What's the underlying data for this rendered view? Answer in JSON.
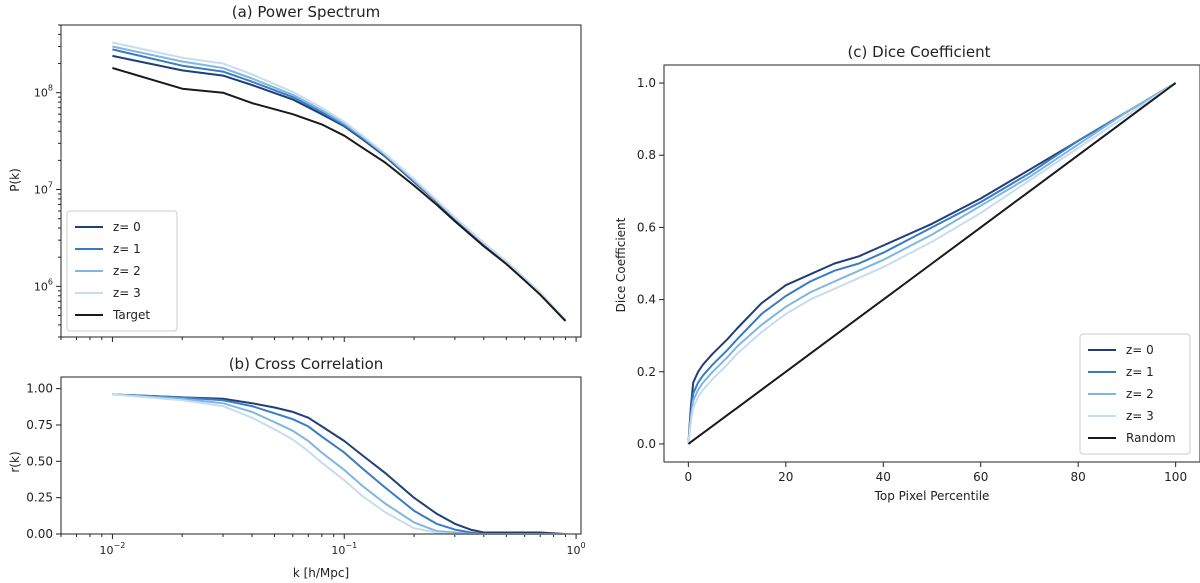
{
  "chart_data": [
    {
      "id": "a",
      "type": "line",
      "title": "(a) Power Spectrum",
      "xlabel": "",
      "ylabel": "P(k)",
      "xscale": "log",
      "yscale": "log",
      "xlim": [
        0.006,
        1.05
      ],
      "ylim": [
        300000,
        500000000
      ],
      "yticks": [
        {
          "value": 1000000,
          "base": "10",
          "exp": "6"
        },
        {
          "value": 10000000,
          "base": "10",
          "exp": "7"
        },
        {
          "value": 100000000,
          "base": "10",
          "exp": "8"
        }
      ],
      "legend_position": "lower-left",
      "x": [
        0.01,
        0.02,
        0.03,
        0.04,
        0.06,
        0.08,
        0.1,
        0.12,
        0.15,
        0.2,
        0.25,
        0.3,
        0.4,
        0.5,
        0.6,
        0.7,
        0.8,
        0.9
      ],
      "series": [
        {
          "name": "z= 0",
          "color": "#1f3f7a",
          "values": [
            240000000,
            170000000,
            150000000,
            120000000,
            85000000,
            60000000,
            45000000,
            33000000,
            22000000,
            12000000,
            7500000,
            5000000,
            2800000,
            1800000,
            1200000,
            850000,
            600000,
            450000
          ]
        },
        {
          "name": "z= 1",
          "color": "#3a7cc2",
          "values": [
            280000000,
            190000000,
            165000000,
            130000000,
            90000000,
            63000000,
            46000000,
            34000000,
            22500000,
            12200000,
            7600000,
            5000000,
            2750000,
            1750000,
            1180000,
            840000,
            590000,
            440000
          ]
        },
        {
          "name": "z= 2",
          "color": "#7fb6dd",
          "values": [
            300000000,
            210000000,
            180000000,
            140000000,
            95000000,
            66000000,
            48000000,
            35000000,
            23000000,
            12500000,
            7700000,
            5100000,
            2800000,
            1800000,
            1200000,
            860000,
            600000,
            450000
          ]
        },
        {
          "name": "z= 3",
          "color": "#c9dcef",
          "values": [
            330000000,
            230000000,
            200000000,
            155000000,
            102000000,
            70000000,
            50000000,
            36000000,
            23500000,
            12800000,
            7800000,
            5150000,
            2820000,
            1820000,
            1220000,
            870000,
            610000,
            455000
          ]
        },
        {
          "name": "Target",
          "color": "#1a1a1a",
          "values": [
            180000000,
            110000000,
            100000000,
            78000000,
            60000000,
            47000000,
            36000000,
            27000000,
            19000000,
            11000000,
            7000000,
            4700000,
            2600000,
            1700000,
            1150000,
            820000,
            590000,
            440000
          ]
        }
      ]
    },
    {
      "id": "b",
      "type": "line",
      "title": "(b) Cross Correlation",
      "xlabel": "k [h/Mpc]",
      "ylabel": "r(k)",
      "xscale": "log",
      "yscale": "linear",
      "xlim": [
        0.006,
        1.05
      ],
      "ylim": [
        0,
        1.08
      ],
      "xticks": [
        {
          "value": 0.01,
          "base": "10",
          "exp": "−2"
        },
        {
          "value": 0.1,
          "base": "10",
          "exp": "−1"
        },
        {
          "value": 1,
          "base": "10",
          "exp": "0"
        }
      ],
      "yticks": [
        "0.00",
        "0.25",
        "0.50",
        "0.75",
        "1.00"
      ],
      "x": [
        0.01,
        0.02,
        0.03,
        0.04,
        0.05,
        0.06,
        0.07,
        0.08,
        0.1,
        0.12,
        0.15,
        0.2,
        0.25,
        0.3,
        0.35,
        0.4,
        0.5,
        0.7,
        0.9
      ],
      "series": [
        {
          "name": "z= 0",
          "color": "#1f3f7a",
          "values": [
            0.96,
            0.94,
            0.93,
            0.9,
            0.87,
            0.84,
            0.8,
            0.74,
            0.64,
            0.54,
            0.42,
            0.25,
            0.14,
            0.07,
            0.03,
            0.01,
            0.01,
            0.01,
            0.0
          ]
        },
        {
          "name": "z= 1",
          "color": "#3a7cc2",
          "values": [
            0.96,
            0.94,
            0.92,
            0.88,
            0.83,
            0.79,
            0.74,
            0.67,
            0.56,
            0.45,
            0.32,
            0.16,
            0.07,
            0.03,
            0.01,
            0.0,
            0.0,
            0.0,
            0.0
          ]
        },
        {
          "name": "z= 2",
          "color": "#7fb6dd",
          "values": [
            0.96,
            0.93,
            0.9,
            0.84,
            0.77,
            0.71,
            0.64,
            0.56,
            0.44,
            0.33,
            0.21,
            0.08,
            0.02,
            0.01,
            0.0,
            0.0,
            0.0,
            0.0,
            0.0
          ]
        },
        {
          "name": "z= 3",
          "color": "#c9dcef",
          "values": [
            0.96,
            0.92,
            0.88,
            0.8,
            0.72,
            0.65,
            0.57,
            0.49,
            0.37,
            0.26,
            0.15,
            0.04,
            0.01,
            0.0,
            0.0,
            0.0,
            0.0,
            0.0,
            0.0
          ]
        }
      ]
    },
    {
      "id": "c",
      "type": "line",
      "title": "(c) Dice Coefficient",
      "xlabel": "Top Pixel Percentile",
      "ylabel": "Dice Coefficient",
      "xscale": "linear",
      "yscale": "linear",
      "xlim": [
        -5,
        105
      ],
      "ylim": [
        -0.05,
        1.05
      ],
      "xticks": [
        "0",
        "20",
        "40",
        "60",
        "80",
        "100"
      ],
      "yticks": [
        "0.0",
        "0.2",
        "0.4",
        "0.6",
        "0.8",
        "1.0"
      ],
      "legend_position": "lower-right",
      "x": [
        0,
        0.5,
        1,
        2,
        3,
        5,
        8,
        10,
        15,
        20,
        25,
        30,
        35,
        40,
        50,
        60,
        70,
        80,
        90,
        100
      ],
      "series": [
        {
          "name": "z= 0",
          "color": "#1f3f7a",
          "values": [
            0.0,
            0.1,
            0.17,
            0.2,
            0.22,
            0.25,
            0.29,
            0.32,
            0.39,
            0.44,
            0.47,
            0.5,
            0.52,
            0.55,
            0.61,
            0.68,
            0.76,
            0.84,
            0.92,
            1.0
          ]
        },
        {
          "name": "z= 1",
          "color": "#3a7cc2",
          "values": [
            0.0,
            0.08,
            0.14,
            0.17,
            0.19,
            0.22,
            0.26,
            0.29,
            0.36,
            0.41,
            0.45,
            0.48,
            0.5,
            0.53,
            0.6,
            0.67,
            0.75,
            0.84,
            0.92,
            1.0
          ]
        },
        {
          "name": "z= 2",
          "color": "#7fb6dd",
          "values": [
            0.0,
            0.07,
            0.12,
            0.15,
            0.17,
            0.2,
            0.24,
            0.27,
            0.33,
            0.38,
            0.42,
            0.45,
            0.48,
            0.51,
            0.58,
            0.66,
            0.74,
            0.83,
            0.92,
            1.0
          ]
        },
        {
          "name": "z= 3",
          "color": "#c9dcef",
          "values": [
            0.0,
            0.06,
            0.1,
            0.13,
            0.15,
            0.18,
            0.22,
            0.25,
            0.31,
            0.36,
            0.4,
            0.43,
            0.46,
            0.49,
            0.56,
            0.64,
            0.73,
            0.82,
            0.91,
            1.0
          ]
        },
        {
          "name": "Random",
          "color": "#1a1a1a",
          "values": [
            0.0,
            0.005,
            0.01,
            0.02,
            0.03,
            0.05,
            0.08,
            0.1,
            0.15,
            0.2,
            0.25,
            0.3,
            0.35,
            0.4,
            0.5,
            0.6,
            0.7,
            0.8,
            0.9,
            1.0
          ]
        }
      ]
    }
  ]
}
